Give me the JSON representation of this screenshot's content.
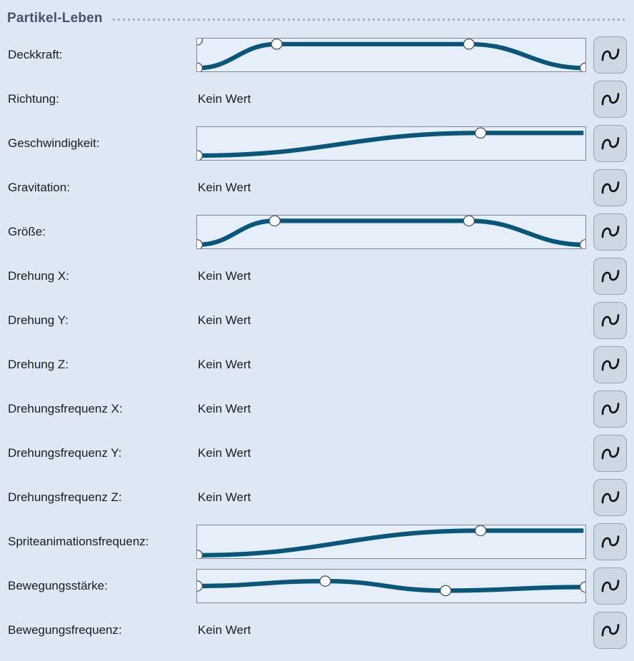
{
  "panel": {
    "title": "Partikel-Leben"
  },
  "colors": {
    "background": "#dde8f4",
    "header_text": "#44546a",
    "divider_dots": "#a9b3c0",
    "label_text": "#1a1c20",
    "curve_stroke": "#0b5678",
    "curve_box_bg": "#e6eefa",
    "curve_box_border": "#7e8894",
    "marker_fill": "#ffffff",
    "marker_stroke": "#4f5a64",
    "button_bg": "#ccd8e3",
    "button_border": "#99a3ad",
    "button_glyph": "#141414"
  },
  "curve_button": {
    "icon": "sine-wave-icon"
  },
  "rows": [
    {
      "label": "Deckkraft:",
      "type": "curve",
      "curve": {
        "points": [
          [
            0,
            0.9
          ],
          [
            0.205,
            0.17
          ],
          [
            0.7,
            0.17
          ],
          [
            1,
            0.9
          ]
        ],
        "markers": [
          [
            0,
            0.04
          ],
          [
            0,
            0.9
          ],
          [
            0.205,
            0.17
          ],
          [
            0.7,
            0.17
          ],
          [
            1,
            0.9
          ]
        ]
      }
    },
    {
      "label": "Richtung:",
      "type": "text",
      "value": "Kein Wert"
    },
    {
      "label": "Geschwindigkeit:",
      "type": "curve",
      "curve": {
        "points": [
          [
            0,
            0.87
          ],
          [
            0.73,
            0.18
          ],
          [
            0.995,
            0.18
          ]
        ],
        "markers": [
          [
            0,
            0.87
          ],
          [
            0.73,
            0.18
          ]
        ]
      }
    },
    {
      "label": "Gravitation:",
      "type": "text",
      "value": "Kein Wert"
    },
    {
      "label": "Größe:",
      "type": "curve",
      "curve": {
        "points": [
          [
            0,
            0.89
          ],
          [
            0.2,
            0.16
          ],
          [
            0.7,
            0.16
          ],
          [
            1,
            0.89
          ]
        ],
        "markers": [
          [
            0,
            0.89
          ],
          [
            0.2,
            0.16
          ],
          [
            0.7,
            0.16
          ],
          [
            1,
            0.89
          ]
        ]
      }
    },
    {
      "label": "Drehung X:",
      "type": "text",
      "value": "Kein Wert"
    },
    {
      "label": "Drehung Y:",
      "type": "text",
      "value": "Kein Wert"
    },
    {
      "label": "Drehung Z:",
      "type": "text",
      "value": "Kein Wert"
    },
    {
      "label": "Drehungsfrequenz X:",
      "type": "text",
      "value": "Kein Wert"
    },
    {
      "label": "Drehungsfrequenz Y:",
      "type": "text",
      "value": "Kein Wert"
    },
    {
      "label": "Drehungsfrequenz Z:",
      "type": "text",
      "value": "Kein Wert"
    },
    {
      "label": "Spriteanimationsfrequenz:",
      "type": "curve",
      "curve": {
        "points": [
          [
            0,
            0.91
          ],
          [
            0.73,
            0.16
          ],
          [
            0.995,
            0.16
          ]
        ],
        "markers": [
          [
            0,
            0.91
          ],
          [
            0.73,
            0.16
          ]
        ]
      }
    },
    {
      "label": "Bewegungsstärke:",
      "type": "curve",
      "curve": {
        "points": [
          [
            0,
            0.5
          ],
          [
            0.33,
            0.35
          ],
          [
            0.64,
            0.64
          ],
          [
            1,
            0.53
          ]
        ],
        "markers": [
          [
            0,
            0.5
          ],
          [
            0.33,
            0.35
          ],
          [
            0.64,
            0.64
          ],
          [
            1,
            0.53
          ]
        ]
      }
    },
    {
      "label": "Bewegungsfrequenz:",
      "type": "text",
      "value": "Kein Wert"
    }
  ]
}
